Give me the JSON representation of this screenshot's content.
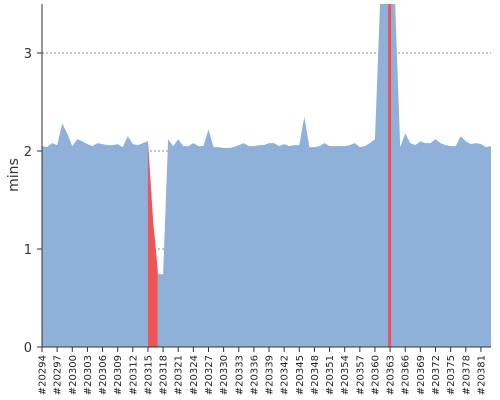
{
  "chart_data": {
    "type": "area",
    "title": "",
    "xlabel": "",
    "ylabel": "mins",
    "ylim": [
      0,
      3.5
    ],
    "yticks": [
      "0",
      "1",
      "2",
      "3"
    ],
    "ytick_values": [
      0,
      1,
      2,
      3
    ],
    "grid": "horizontal-dashed",
    "legend": "none",
    "x_tick_labels": [
      "#20294",
      "#20297",
      "#20300",
      "#20303",
      "#20306",
      "#20309",
      "#20312",
      "#20315",
      "#20318",
      "#20321",
      "#20324",
      "#20327",
      "#20330",
      "#20333",
      "#20336",
      "#20339",
      "#20342",
      "#20345",
      "#20348",
      "#20351",
      "#20354",
      "#20357",
      "#20360",
      "#20363",
      "#20366",
      "#20369",
      "#20372",
      "#20375",
      "#20378",
      "#20381"
    ],
    "x_tick_values": [
      20294,
      20297,
      20300,
      20303,
      20306,
      20309,
      20312,
      20315,
      20318,
      20321,
      20324,
      20327,
      20330,
      20333,
      20336,
      20339,
      20342,
      20345,
      20348,
      20351,
      20354,
      20357,
      20360,
      20363,
      20366,
      20369,
      20372,
      20375,
      20378,
      20381
    ],
    "x": [
      20294,
      20295,
      20296,
      20297,
      20298,
      20299,
      20300,
      20301,
      20302,
      20303,
      20304,
      20305,
      20306,
      20307,
      20308,
      20309,
      20310,
      20311,
      20312,
      20313,
      20314,
      20315,
      20316,
      20317,
      20318,
      20319,
      20320,
      20321,
      20322,
      20323,
      20324,
      20325,
      20326,
      20327,
      20328,
      20329,
      20330,
      20331,
      20332,
      20333,
      20334,
      20335,
      20336,
      20337,
      20338,
      20339,
      20340,
      20341,
      20342,
      20343,
      20344,
      20345,
      20346,
      20347,
      20348,
      20349,
      20350,
      20351,
      20352,
      20353,
      20354,
      20355,
      20356,
      20357,
      20358,
      20359,
      20360,
      20361,
      20362,
      20363,
      20364,
      20365,
      20366,
      20367,
      20368,
      20369,
      20370,
      20371,
      20372,
      20373,
      20374,
      20375,
      20376,
      20377,
      20378,
      20379,
      20380,
      20381,
      20382,
      20383
    ],
    "values": [
      2.05,
      2.04,
      2.08,
      2.06,
      2.28,
      2.18,
      2.05,
      2.12,
      2.1,
      2.07,
      2.05,
      2.08,
      2.07,
      2.06,
      2.06,
      2.07,
      2.04,
      2.15,
      2.07,
      2.06,
      2.08,
      2.1,
      1.3,
      0.75,
      0.74,
      2.12,
      2.05,
      2.12,
      2.05,
      2.05,
      2.08,
      2.05,
      2.05,
      2.22,
      2.04,
      2.04,
      2.03,
      2.03,
      2.04,
      2.06,
      2.08,
      2.05,
      2.05,
      2.06,
      2.06,
      2.08,
      2.08,
      2.05,
      2.07,
      2.05,
      2.06,
      2.06,
      2.35,
      2.04,
      2.04,
      2.05,
      2.08,
      2.05,
      2.05,
      2.05,
      2.05,
      2.06,
      2.08,
      2.04,
      2.05,
      2.08,
      2.12,
      3.6,
      3.6,
      3.6,
      3.6,
      2.04,
      2.18,
      2.08,
      2.06,
      2.1,
      2.08,
      2.08,
      2.12,
      2.08,
      2.06,
      2.05,
      2.05,
      2.15,
      2.1,
      2.07,
      2.08,
      2.07,
      2.04,
      2.05
    ],
    "fill_color": "#8fb0d8",
    "highlight_color": "#f05555",
    "highlights": [
      {
        "from": 20315,
        "to": 20316.9
      },
      {
        "from": 20362.6,
        "to": 20363.2
      }
    ]
  }
}
